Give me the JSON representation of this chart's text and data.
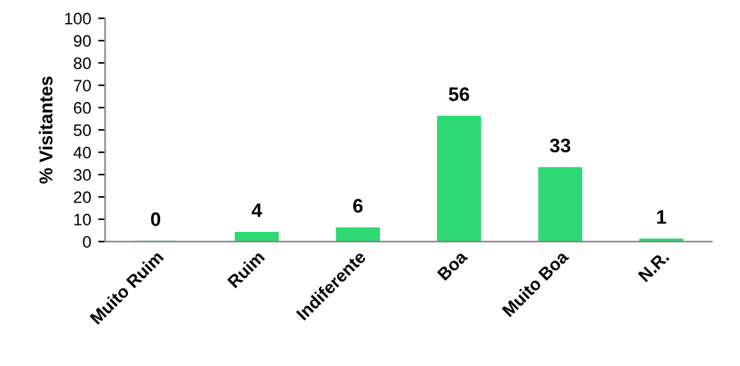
{
  "chart_data": {
    "type": "bar",
    "ylabel": "% Visitantes",
    "categories": [
      "Muito Ruim",
      "Ruim",
      "Indiferente",
      "Boa",
      "Muito Boa",
      "N.R."
    ],
    "values": [
      0,
      4,
      6,
      56,
      33,
      1
    ],
    "color": "#2ed872",
    "ylim": [
      0,
      100
    ],
    "yticks": [
      0,
      10,
      20,
      30,
      40,
      50,
      60,
      70,
      80,
      90,
      100
    ],
    "data_labels": true,
    "grid": false
  }
}
